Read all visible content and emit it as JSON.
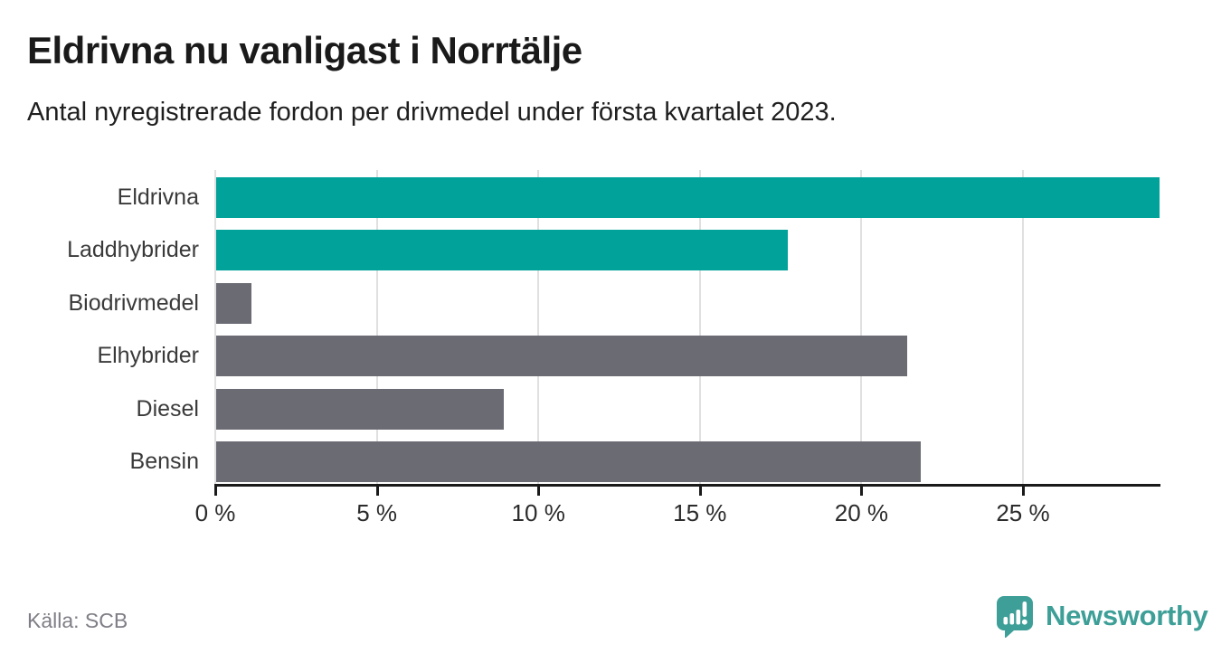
{
  "header": {
    "title": "Eldrivna nu vanligast i Norrtälje",
    "subtitle": "Antal nyregistrerade fordon per drivmedel under första kvartalet 2023."
  },
  "chart_data": {
    "type": "bar",
    "orientation": "horizontal",
    "title": "Eldrivna nu vanligast i Norrtälje",
    "subtitle": "Antal nyregistrerade fordon per drivmedel under första kvartalet 2023.",
    "categories": [
      "Eldrivna",
      "Laddhybrider",
      "Biodrivmedel",
      "Elhybrider",
      "Diesel",
      "Bensin"
    ],
    "values": [
      29.2,
      17.7,
      1.1,
      21.4,
      8.9,
      21.8
    ],
    "unit": "%",
    "bar_colors": [
      "#00a29a",
      "#00a29a",
      "#6b6b74",
      "#6b6b74",
      "#6b6b74",
      "#6b6b74"
    ],
    "xlabel": "",
    "ylabel": "",
    "xlim": [
      0,
      29.2
    ],
    "x_ticks": [
      0,
      5,
      10,
      15,
      20,
      25
    ],
    "x_tick_labels": [
      "0 %",
      "5 %",
      "10 %",
      "15 %",
      "20 %",
      "25 %"
    ],
    "grid": "vertical-gridlines-on",
    "legend": "none"
  },
  "footer": {
    "source": "Källa: SCB",
    "brand": "Newsworthy"
  },
  "colors": {
    "accent_teal": "#00a29a",
    "neutral_gray": "#6b6b74",
    "brand_teal": "#3d9f97",
    "gridline": "#e0e0e0",
    "axis": "#1a1a1a",
    "text_dark": "#1a1a1a",
    "text_muted": "#7e7e86"
  },
  "icons": {
    "logo": "newsworthy-speech-bubble-bar-chart-icon"
  }
}
